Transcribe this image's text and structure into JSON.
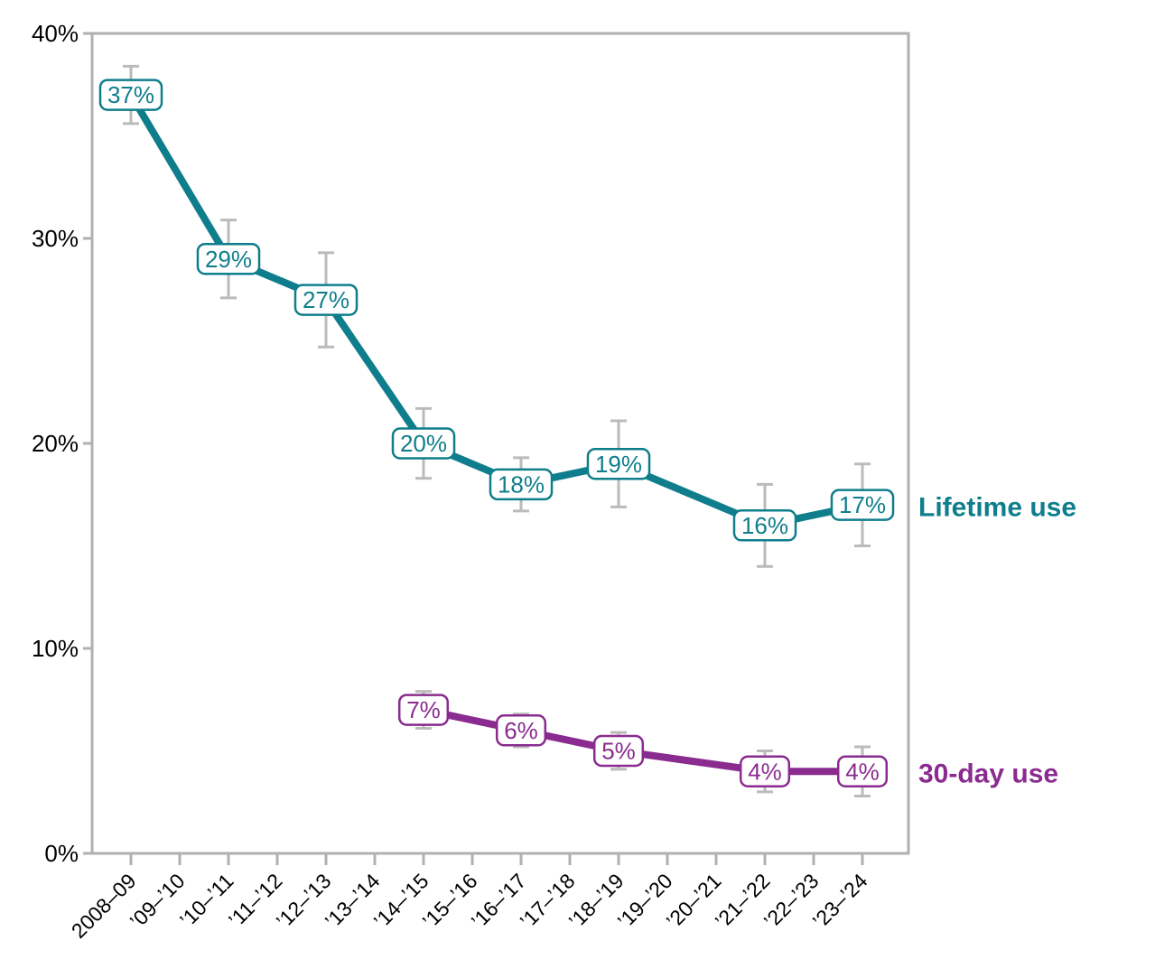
{
  "chart_data": {
    "type": "line",
    "categories": [
      "2008–09",
      "’09–’10",
      "’10–’11",
      "’11–’12",
      "’12–’13",
      "’13–’14",
      "’14–’15",
      "’15–’16",
      "’16–’17",
      "’17–’18",
      "’18–’19",
      "’19–’20",
      "’20–’21",
      "’21–’22",
      "’22–’23",
      "’23–’24"
    ],
    "y_axis": {
      "ylim": [
        0,
        40
      ],
      "ticks": [
        0,
        10,
        20,
        30,
        40
      ],
      "tick_labels": [
        "0%",
        "10%",
        "20%",
        "30%",
        "40%"
      ]
    },
    "series": [
      {
        "name": "Lifetime use",
        "color": "#0f7e8c",
        "category_indices": [
          0,
          2,
          4,
          6,
          8,
          10,
          13,
          15
        ],
        "values": [
          37,
          29,
          27,
          20,
          18,
          19,
          16,
          17
        ],
        "point_labels": [
          "37%",
          "29%",
          "27%",
          "20%",
          "18%",
          "19%",
          "16%",
          "17%"
        ],
        "error_margins": [
          1.4,
          1.9,
          2.3,
          1.7,
          1.3,
          2.1,
          2.0,
          2.0
        ]
      },
      {
        "name": "30-day use",
        "color": "#8a2b8f",
        "category_indices": [
          6,
          8,
          10,
          13,
          15
        ],
        "values": [
          7,
          6,
          5,
          4,
          4
        ],
        "point_labels": [
          "7%",
          "6%",
          "5%",
          "4%",
          "4%"
        ],
        "error_margins": [
          0.9,
          0.8,
          0.9,
          1.0,
          1.2
        ]
      }
    ],
    "styles": {
      "axis_color": "#b0b0b3",
      "error_bar_color": "#bbbbbb",
      "tick_text_color": "#000000",
      "label_box_fill": "#ffffff"
    },
    "grid": false,
    "legend_position": "right-of-line-ends"
  }
}
